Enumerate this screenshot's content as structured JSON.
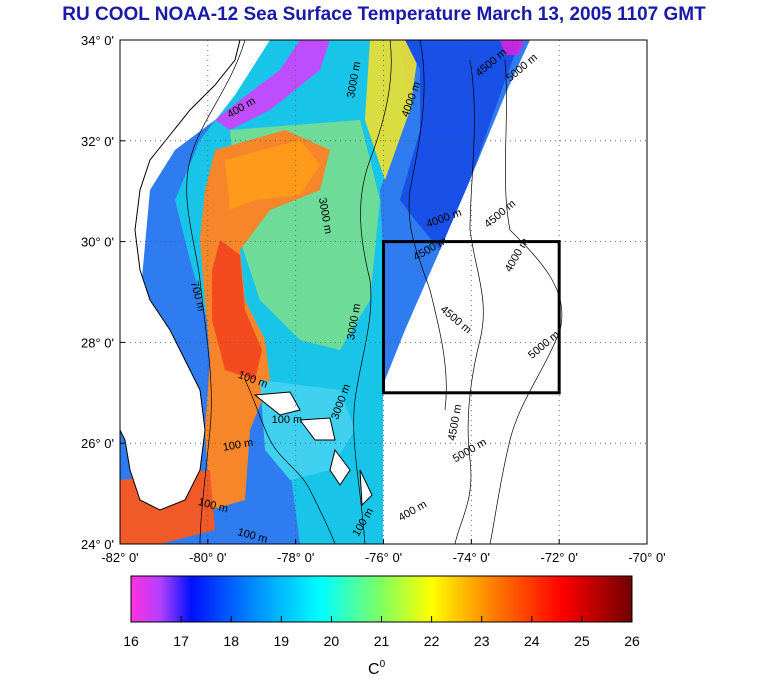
{
  "title": "RU COOL  NOAA-12 Sea Surface Temperature March 13, 2005 1107 GMT",
  "map": {
    "lon_range": [
      -82,
      -70
    ],
    "lat_range": [
      24,
      34
    ],
    "lon_ticks": [
      {
        "value": -82,
        "label": "-82° 0'"
      },
      {
        "value": -80,
        "label": "-80° 0'"
      },
      {
        "value": -78,
        "label": "-78° 0'"
      },
      {
        "value": -76,
        "label": "-76° 0'"
      },
      {
        "value": -74,
        "label": "-74° 0'"
      },
      {
        "value": -72,
        "label": "-72° 0'"
      },
      {
        "value": -70,
        "label": "-70° 0'"
      }
    ],
    "lat_ticks": [
      {
        "value": 24,
        "label": "24° 0'"
      },
      {
        "value": 26,
        "label": "26° 0'"
      },
      {
        "value": 28,
        "label": "28° 0'"
      },
      {
        "value": 30,
        "label": "30° 0'"
      },
      {
        "value": 32,
        "label": "32° 0'"
      },
      {
        "value": 34,
        "label": "34° 0'"
      }
    ],
    "grid": "dotted",
    "study_box": {
      "lon_min": -76,
      "lon_max": -72,
      "lat_min": 27,
      "lat_max": 30
    },
    "contour_labels": [
      {
        "text": "3000 m",
        "lon": -76.6,
        "lat": 33.2,
        "angle": -80
      },
      {
        "text": "4000 m",
        "lon": -75.3,
        "lat": 32.8,
        "angle": -70
      },
      {
        "text": "4500 m",
        "lon": -73.5,
        "lat": 33.5,
        "angle": -40
      },
      {
        "text": "5000 m",
        "lon": -72.8,
        "lat": 33.4,
        "angle": -40
      },
      {
        "text": "400 m",
        "lon": -79.2,
        "lat": 32.6,
        "angle": -30
      },
      {
        "text": "3000 m",
        "lon": -77.4,
        "lat": 30.5,
        "angle": 80
      },
      {
        "text": "4000 m",
        "lon": -74.6,
        "lat": 30.4,
        "angle": -20
      },
      {
        "text": "4500 m",
        "lon": -73.3,
        "lat": 30.5,
        "angle": -40
      },
      {
        "text": "4500 m",
        "lon": -74.9,
        "lat": 29.8,
        "angle": -30
      },
      {
        "text": "4000 m",
        "lon": -72.9,
        "lat": 29.7,
        "angle": -60
      },
      {
        "text": "700 m",
        "lon": -80.3,
        "lat": 28.9,
        "angle": 75
      },
      {
        "text": "4500 m",
        "lon": -74.4,
        "lat": 28.4,
        "angle": 40
      },
      {
        "text": "3000 m",
        "lon": -76.6,
        "lat": 28.4,
        "angle": -80
      },
      {
        "text": "5000 m",
        "lon": -72.3,
        "lat": 27.9,
        "angle": -40
      },
      {
        "text": "100 m",
        "lon": -79.0,
        "lat": 27.2,
        "angle": 20
      },
      {
        "text": "100 m",
        "lon": -78.2,
        "lat": 26.4,
        "angle": 0
      },
      {
        "text": "3000 m",
        "lon": -76.9,
        "lat": 26.8,
        "angle": -70
      },
      {
        "text": "100 m",
        "lon": -79.3,
        "lat": 25.9,
        "angle": -10
      },
      {
        "text": "4500 m",
        "lon": -74.3,
        "lat": 26.4,
        "angle": -80
      },
      {
        "text": "5000 m",
        "lon": -74.0,
        "lat": 25.8,
        "angle": -30
      },
      {
        "text": "100 m",
        "lon": -79.9,
        "lat": 24.7,
        "angle": 15
      },
      {
        "text": "100 m",
        "lon": -76.4,
        "lat": 24.4,
        "angle": -60
      },
      {
        "text": "100 m",
        "lon": -79.0,
        "lat": 24.1,
        "angle": 15
      },
      {
        "text": "400 m",
        "lon": -75.3,
        "lat": 24.6,
        "angle": -30
      }
    ]
  },
  "colorbar": {
    "min": 16,
    "max": 26,
    "tick_labels": [
      "16",
      "17",
      "18",
      "19",
      "20",
      "21",
      "22",
      "23",
      "24",
      "25",
      "26"
    ],
    "unit_label": "C",
    "unit_superscript": "0",
    "stops": [
      "#ff30e0",
      "#0018ff",
      "#00ffff",
      "#ffff00",
      "#ff0000",
      "#800000"
    ]
  }
}
